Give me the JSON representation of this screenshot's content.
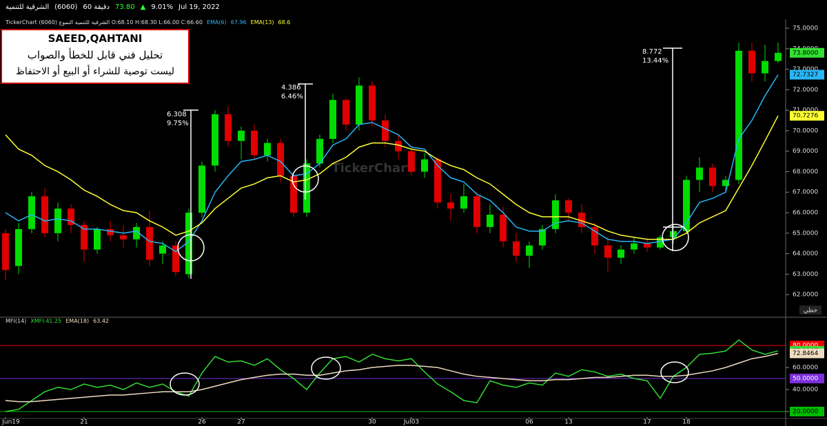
{
  "header": {
    "items": [
      "الشرقية للتنمية",
      "(6060)",
      "60 دقيقة",
      "73.80",
      "9.01%",
      "Jul 19, 2022"
    ],
    "info": "TickerChart الشرقية للتنمية النموع (6060) O:68.10 H:68.30 L:66.00 C:66.60",
    "note": {
      "author": "SAEED,QAHTANI",
      "lines": [
        "تحليل فني قابل للخطأ والصواب",
        "ليست توصية للشراء أو البيع أو الاحتفاظ"
      ]
    },
    "measures": [
      [
        "6.308",
        "9.75%"
      ],
      [
        "4.386",
        "6.46%"
      ],
      [
        "8.772",
        "13.44%"
      ]
    ],
    "watermark": "TickerChart"
  },
  "chart_data": [
    {
      "type": "candlestick",
      "up_color": "#00dd00",
      "down_color": "#e00000",
      "categories": [
        "Jun19",
        null,
        null,
        null,
        null,
        null,
        "21",
        null,
        null,
        null,
        null,
        null,
        null,
        null,
        null,
        "26",
        null,
        null,
        "27",
        null,
        null,
        null,
        null,
        null,
        null,
        null,
        null,
        null,
        "30",
        null,
        null,
        "Jul03",
        null,
        null,
        null,
        null,
        null,
        null,
        null,
        null,
        "06",
        null,
        null,
        "13",
        null,
        null,
        null,
        null,
        null,
        "17",
        null,
        null,
        "18",
        null,
        null,
        null,
        null,
        null,
        null,
        null
      ],
      "open": [
        65.0,
        63.4,
        65.2,
        66.8,
        65.0,
        66.2,
        65.4,
        64.2,
        65.2,
        64.9,
        64.7,
        65.3,
        64.0,
        64.4,
        63.0,
        66.0,
        68.3,
        70.8,
        69.5,
        70.0,
        68.8,
        69.4,
        67.8,
        66.0,
        68.4,
        69.6,
        71.5,
        70.3,
        72.2,
        70.5,
        69.5,
        69.0,
        68.0,
        68.6,
        66.5,
        66.2,
        66.8,
        65.3,
        65.9,
        64.6,
        63.9,
        64.4,
        65.2,
        66.6,
        66.0,
        65.3,
        64.4,
        63.8,
        64.2,
        64.5,
        64.3,
        64.8,
        65.1,
        67.6,
        68.2,
        67.3,
        67.6,
        73.9,
        72.8,
        73.4
      ],
      "high": [
        65.2,
        65.5,
        67.0,
        67.2,
        66.5,
        66.4,
        65.6,
        65.3,
        65.6,
        65.4,
        65.5,
        66.1,
        64.6,
        64.6,
        66.2,
        68.5,
        71.0,
        71.2,
        70.2,
        70.3,
        69.6,
        69.6,
        67.9,
        68.6,
        69.8,
        71.8,
        71.6,
        72.6,
        72.4,
        70.8,
        69.8,
        69.2,
        68.9,
        68.7,
        66.9,
        67.4,
        67.0,
        66.4,
        66.3,
        65.0,
        64.6,
        65.4,
        66.9,
        66.7,
        66.4,
        65.5,
        64.8,
        64.4,
        64.8,
        64.8,
        64.9,
        65.4,
        67.8,
        68.7,
        68.4,
        67.8,
        74.3,
        74.3,
        74.2,
        74.3
      ],
      "low": [
        62.7,
        63.0,
        65.0,
        64.8,
        64.6,
        65.0,
        63.6,
        64.0,
        64.6,
        64.3,
        64.3,
        63.4,
        63.5,
        62.9,
        62.8,
        65.8,
        68.0,
        69.2,
        68.6,
        68.6,
        68.5,
        67.5,
        65.8,
        65.8,
        68.2,
        69.4,
        70.0,
        70.0,
        70.2,
        69.2,
        68.6,
        67.8,
        67.7,
        66.2,
        65.6,
        66.0,
        65.0,
        65.0,
        64.3,
        63.6,
        63.3,
        64.2,
        65.0,
        65.6,
        65.0,
        64.0,
        63.1,
        63.5,
        64.0,
        64.1,
        64.2,
        64.5,
        65.0,
        67.0,
        67.0,
        67.0,
        67.4,
        72.4,
        72.4,
        73.3
      ],
      "close": [
        63.2,
        65.2,
        66.8,
        65.0,
        66.2,
        65.4,
        64.2,
        65.2,
        64.9,
        64.7,
        65.3,
        63.7,
        64.4,
        63.1,
        66.0,
        68.3,
        70.8,
        69.5,
        70.0,
        68.8,
        69.4,
        67.8,
        66.0,
        68.4,
        69.6,
        71.5,
        70.3,
        72.2,
        70.5,
        69.5,
        69.0,
        68.0,
        68.6,
        66.5,
        66.2,
        66.8,
        65.3,
        65.9,
        64.6,
        63.9,
        64.4,
        65.2,
        66.6,
        66.0,
        65.3,
        64.4,
        63.8,
        64.2,
        64.5,
        64.3,
        64.8,
        65.1,
        67.6,
        68.2,
        67.3,
        67.6,
        73.9,
        72.8,
        73.4,
        73.8
      ],
      "close_label": "73.8000",
      "series": [
        {
          "name": "EMA(6)",
          "color": "#29b6f6",
          "legend_value": 67.96,
          "values": [
            66.0,
            65.6,
            65.9,
            65.6,
            65.7,
            65.6,
            65.2,
            65.2,
            65.1,
            65.0,
            65.1,
            64.6,
            64.5,
            64.1,
            64.6,
            65.6,
            67.0,
            67.8,
            68.5,
            68.6,
            68.8,
            68.5,
            67.8,
            67.9,
            68.4,
            69.3,
            69.6,
            70.3,
            70.4,
            70.1,
            69.8,
            69.2,
            69.1,
            68.3,
            67.7,
            67.5,
            66.9,
            66.6,
            66.0,
            65.3,
            65.1,
            65.1,
            65.5,
            65.6,
            65.5,
            65.1,
            64.7,
            64.6,
            64.6,
            64.5,
            64.6,
            64.7,
            65.5,
            66.5,
            66.7,
            67.0,
            69.6,
            70.5,
            71.7,
            72.7327
          ]
        },
        {
          "name": "EMA(13)",
          "color": "#ffff33",
          "legend_value": 68.6,
          "values": [
            69.8,
            69.1,
            68.8,
            68.3,
            68.0,
            67.6,
            67.1,
            66.8,
            66.4,
            66.1,
            66.0,
            65.6,
            65.3,
            64.9,
            65.1,
            65.5,
            66.2,
            66.7,
            67.2,
            67.4,
            67.7,
            67.8,
            67.5,
            67.6,
            67.9,
            68.4,
            68.7,
            69.2,
            69.4,
            69.4,
            69.3,
            69.1,
            69.0,
            68.6,
            68.3,
            68.1,
            67.7,
            67.4,
            66.9,
            66.4,
            66.0,
            65.8,
            65.8,
            65.8,
            65.6,
            65.4,
            65.1,
            64.9,
            64.8,
            64.7,
            64.7,
            64.7,
            65.0,
            65.5,
            65.8,
            66.1,
            67.2,
            68.3,
            69.5,
            70.7276
          ]
        }
      ],
      "ylim": [
        60.93,
        75.37
      ],
      "yticks": [
        {
          "value": 62,
          "label": "62.0000"
        },
        {
          "value": 63,
          "label": "63.0000"
        },
        {
          "value": 64,
          "label": "64.0000"
        },
        {
          "value": 65,
          "label": "65.0000"
        },
        {
          "value": 66,
          "label": "66.0000"
        },
        {
          "value": 67,
          "label": "67.0000"
        },
        {
          "value": 68,
          "label": "68.0000"
        },
        {
          "value": 69,
          "label": "69.0000"
        },
        {
          "value": 70,
          "label": "70.0000"
        },
        {
          "value": 71,
          "label": "71.0000"
        },
        {
          "value": 72,
          "label": "72.0000"
        },
        {
          "value": 73,
          "label": "73.0000"
        },
        {
          "value": 74,
          "label": "74.0000"
        },
        {
          "value": 75,
          "label": "75.0000"
        }
      ],
      "scale_label": "خطي"
    },
    {
      "type": "line",
      "title": "MFI(14)",
      "series": [
        {
          "name": "XMFI:41.25",
          "color": "#33dd33",
          "values": [
            20,
            22,
            30,
            38,
            42,
            40,
            45,
            42,
            44,
            40,
            46,
            42,
            45,
            38,
            34,
            55,
            70,
            65,
            66,
            62,
            68,
            58,
            50,
            40,
            55,
            68,
            70,
            65,
            72,
            68,
            66,
            68,
            56,
            45,
            38,
            30,
            28,
            48,
            44,
            42,
            46,
            44,
            55,
            52,
            58,
            56,
            52,
            54,
            50,
            48,
            32,
            52,
            60,
            72,
            73,
            75,
            85,
            76,
            72,
            75.1367
          ]
        },
        {
          "name": "EMA(18)",
          "color": "#f0dcc0",
          "legend_value": 63.42,
          "values": [
            30,
            29,
            29,
            30,
            31,
            32,
            33,
            34,
            35,
            35,
            36,
            37,
            38,
            38,
            38,
            40,
            43,
            46,
            49,
            51,
            53,
            54,
            54,
            53,
            53,
            55,
            57,
            58,
            60,
            61,
            62,
            62,
            61,
            60,
            57,
            54,
            52,
            51,
            50,
            49,
            48,
            48,
            49,
            49,
            50,
            51,
            51,
            52,
            53,
            53,
            52,
            52,
            53,
            55,
            57,
            60,
            64,
            68,
            70,
            72.8464
          ]
        }
      ],
      "levels": [
        {
          "value": 80,
          "label": "80.0000",
          "color": "#ee0000"
        },
        {
          "value": 50,
          "label": "50.0000",
          "color": "#7a2fd8"
        },
        {
          "value": 20,
          "label": "20.0000",
          "color": "#00bb00"
        }
      ],
      "ylim": [
        13.75,
        104.4
      ],
      "yticks": [
        {
          "value": 20,
          "label": "20.0000"
        },
        {
          "value": 40,
          "label": "40.0000"
        },
        {
          "value": 60,
          "label": "60.0000"
        }
      ]
    }
  ]
}
